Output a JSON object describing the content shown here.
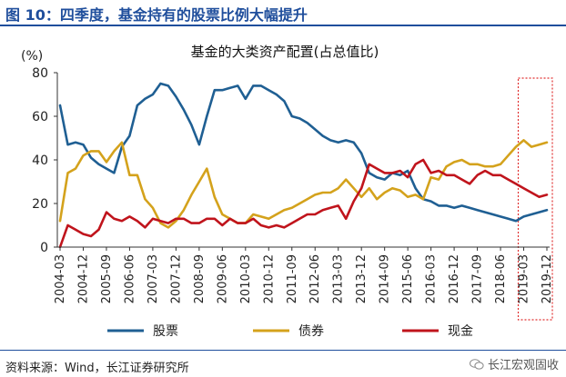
{
  "figure": {
    "title": "图 10：四季度，基金持有的股票比例大幅提升",
    "source": "资料来源：Wind，长江证券研究所",
    "brand": "长江宏观固收"
  },
  "colors": {
    "title_blue": "#1f4e9c",
    "stocks": "#1f5f93",
    "bonds": "#d4a21c",
    "cash": "#c0141c",
    "highlight": "#e03030"
  },
  "chart_data": {
    "type": "line",
    "title": "基金的大类资产配置(占总值比)",
    "ylabel": "(%)",
    "xlabel": "",
    "ylim": [
      0,
      80
    ],
    "yticks": [
      0,
      20,
      40,
      60,
      80
    ],
    "grid": false,
    "legend_position": "bottom",
    "x_tick_labels": [
      "2004-03",
      "2004-12",
      "2005-09",
      "2006-06",
      "2007-03",
      "2007-12",
      "2008-09",
      "2009-06",
      "2010-03",
      "2010-12",
      "2011-09",
      "2012-06",
      "2013-03",
      "2013-12",
      "2014-09",
      "2015-06",
      "2016-03",
      "2016-12",
      "2017-09",
      "2018-06",
      "2019-03",
      "2019-12"
    ],
    "highlight_range": [
      "2019-03",
      "2019-12"
    ],
    "x": [
      "2004-03",
      "2004-06",
      "2004-09",
      "2004-12",
      "2005-03",
      "2005-06",
      "2005-09",
      "2005-12",
      "2006-03",
      "2006-06",
      "2006-09",
      "2006-12",
      "2007-03",
      "2007-06",
      "2007-09",
      "2007-12",
      "2008-03",
      "2008-06",
      "2008-09",
      "2008-12",
      "2009-03",
      "2009-06",
      "2009-09",
      "2009-12",
      "2010-03",
      "2010-06",
      "2010-09",
      "2010-12",
      "2011-03",
      "2011-06",
      "2011-09",
      "2011-12",
      "2012-03",
      "2012-06",
      "2012-09",
      "2012-12",
      "2013-03",
      "2013-06",
      "2013-09",
      "2013-12",
      "2014-03",
      "2014-06",
      "2014-09",
      "2014-12",
      "2015-03",
      "2015-06",
      "2015-09",
      "2015-12",
      "2016-03",
      "2016-06",
      "2016-09",
      "2016-12",
      "2017-03",
      "2017-06",
      "2017-09",
      "2017-12",
      "2018-03",
      "2018-06",
      "2018-09",
      "2018-12",
      "2019-03",
      "2019-06",
      "2019-09",
      "2019-12"
    ],
    "series": [
      {
        "name": "股票",
        "color_key": "stocks",
        "values": [
          65,
          47,
          48,
          47,
          41,
          38,
          36,
          34,
          46,
          51,
          65,
          68,
          70,
          75,
          74,
          69,
          63,
          56,
          47,
          60,
          72,
          72,
          73,
          74,
          68,
          74,
          74,
          72,
          70,
          67,
          60,
          59,
          57,
          54,
          51,
          49,
          48,
          49,
          48,
          43,
          34,
          32,
          31,
          34,
          33,
          35,
          27,
          22,
          21,
          19,
          19,
          18,
          19,
          18,
          17,
          16,
          15,
          14,
          13,
          12,
          14,
          15,
          16,
          17
        ]
      },
      {
        "name": "债券",
        "color_key": "bonds",
        "values": [
          12,
          34,
          36,
          42,
          44,
          44,
          39,
          44,
          48,
          33,
          33,
          22,
          18,
          11,
          9,
          12,
          17,
          24,
          30,
          36,
          23,
          15,
          13,
          11,
          11,
          15,
          14,
          13,
          15,
          17,
          18,
          20,
          22,
          24,
          25,
          25,
          27,
          31,
          27,
          23,
          27,
          22,
          25,
          27,
          26,
          23,
          24,
          22,
          32,
          31,
          37,
          39,
          40,
          38,
          38,
          37,
          37,
          38,
          42,
          46,
          49,
          46,
          47,
          48
        ]
      },
      {
        "name": "现金",
        "color_key": "cash",
        "values": [
          0,
          10,
          8,
          6,
          5,
          8,
          16,
          13,
          12,
          14,
          12,
          9,
          13,
          12,
          11,
          13,
          13,
          11,
          11,
          13,
          13,
          10,
          13,
          11,
          11,
          13,
          10,
          9,
          10,
          9,
          11,
          13,
          15,
          15,
          17,
          18,
          19,
          13,
          21,
          27,
          38,
          36,
          34,
          34,
          35,
          32,
          38,
          40,
          34,
          35,
          33,
          33,
          31,
          29,
          33,
          35,
          33,
          33,
          31,
          29,
          27,
          25,
          23,
          24
        ]
      }
    ]
  }
}
